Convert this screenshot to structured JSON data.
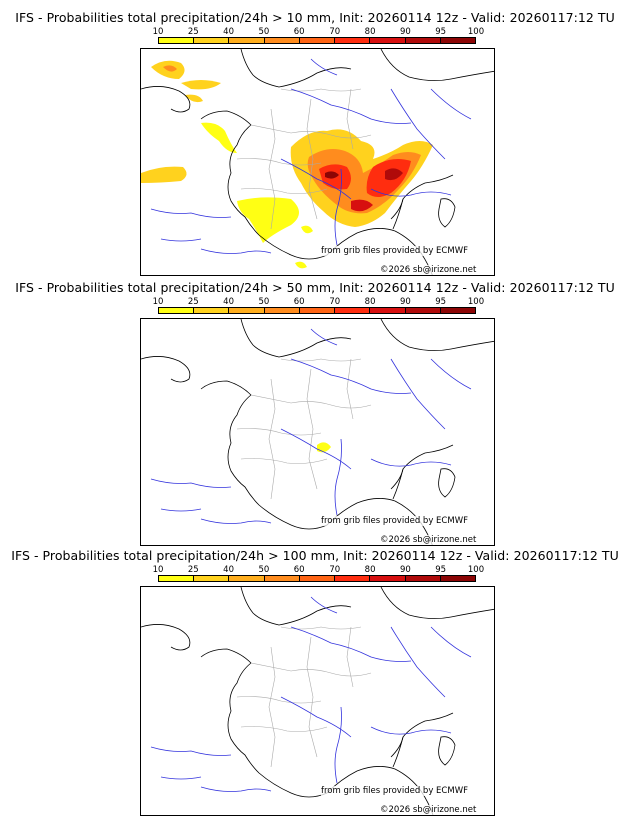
{
  "colorbar": {
    "ticks": [
      "10",
      "25",
      "40",
      "50",
      "60",
      "70",
      "80",
      "90",
      "95",
      "100"
    ],
    "colors": [
      "#ffff14",
      "#ffd21e",
      "#ffae1e",
      "#ff8c1e",
      "#ff6414",
      "#ff2d0f",
      "#d70f0f",
      "#b00a0a",
      "#8c0505",
      "#5f0000"
    ]
  },
  "panels": [
    {
      "title": "IFS - Probabilities total precipitation/24h > 10 mm, Init: 20260114 12z - Valid: 20260117:12 TU",
      "source_credit": "from grib files provided by ECMWF",
      "copyright": "©2026 sb@irizone.net"
    },
    {
      "title": "IFS - Probabilities total precipitation/24h > 50 mm, Init: 20260114 12z - Valid: 20260117:12 TU",
      "source_credit": "from grib files provided by ECMWF",
      "copyright": "©2026 sb@irizone.net"
    },
    {
      "title": "IFS - Probabilities total precipitation/24h > 100 mm, Init: 20260114 12z - Valid: 20260117:12 TU",
      "source_credit": "from grib files provided by ECMWF",
      "copyright": "©2026 sb@irizone.net"
    }
  ]
}
